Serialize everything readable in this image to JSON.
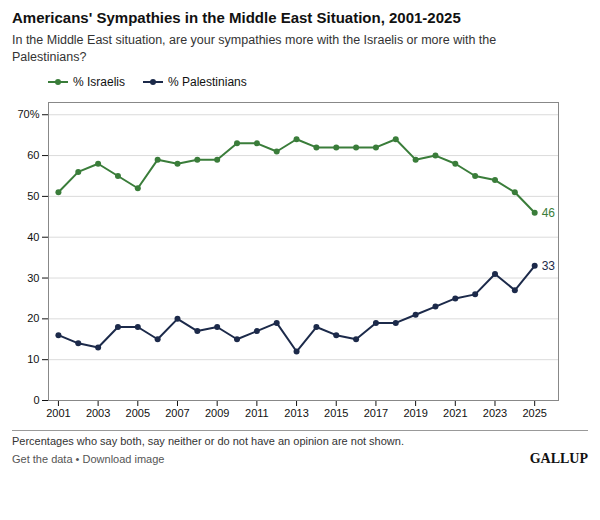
{
  "chart_data": {
    "type": "line",
    "title": "Americans' Sympathies in the Middle East Situation, 2001-2025",
    "subtitle": "In the Middle East situation, are your sympathies more with the Israelis or more with the\nPalestinians?",
    "footnote": "Percentages who say both, say neither or do not have an opinion are not shown.",
    "footer_left": "Get the data • Download image",
    "footer_right": "GALLUP",
    "x": [
      2001,
      2002,
      2003,
      2004,
      2005,
      2006,
      2007,
      2008,
      2009,
      2010,
      2011,
      2012,
      2013,
      2014,
      2015,
      2016,
      2017,
      2018,
      2019,
      2020,
      2021,
      2022,
      2023,
      2024,
      2025
    ],
    "series": [
      {
        "name": "% Israelis",
        "color": "#3a7d3a",
        "values": [
          51,
          56,
          58,
          55,
          52,
          59,
          58,
          59,
          59,
          63,
          63,
          61,
          64,
          62,
          62,
          62,
          62,
          64,
          59,
          60,
          58,
          55,
          54,
          51,
          46
        ]
      },
      {
        "name": "% Palestinians",
        "color": "#1c2a4a",
        "values": [
          16,
          14,
          13,
          18,
          18,
          15,
          20,
          17,
          18,
          15,
          17,
          19,
          12,
          18,
          16,
          15,
          19,
          19,
          21,
          23,
          25,
          26,
          31,
          27,
          33
        ]
      }
    ],
    "annotations": [
      {
        "text": "46",
        "x": 2025,
        "y": 46,
        "color": "#3a7d3a"
      },
      {
        "text": "33",
        "x": 2025,
        "y": 33,
        "color": "#1c2a4a"
      }
    ],
    "xlim": [
      2000.5,
      2026.2
    ],
    "xticks": [
      2001,
      2003,
      2005,
      2007,
      2009,
      2011,
      2013,
      2015,
      2017,
      2019,
      2021,
      2023,
      2025
    ],
    "ylim": [
      0,
      73
    ],
    "yticks": [
      0,
      10,
      20,
      30,
      40,
      50,
      60,
      {
        "value": 70,
        "label": "70%"
      }
    ],
    "grid": true,
    "legend": "top",
    "marker": "circle"
  }
}
